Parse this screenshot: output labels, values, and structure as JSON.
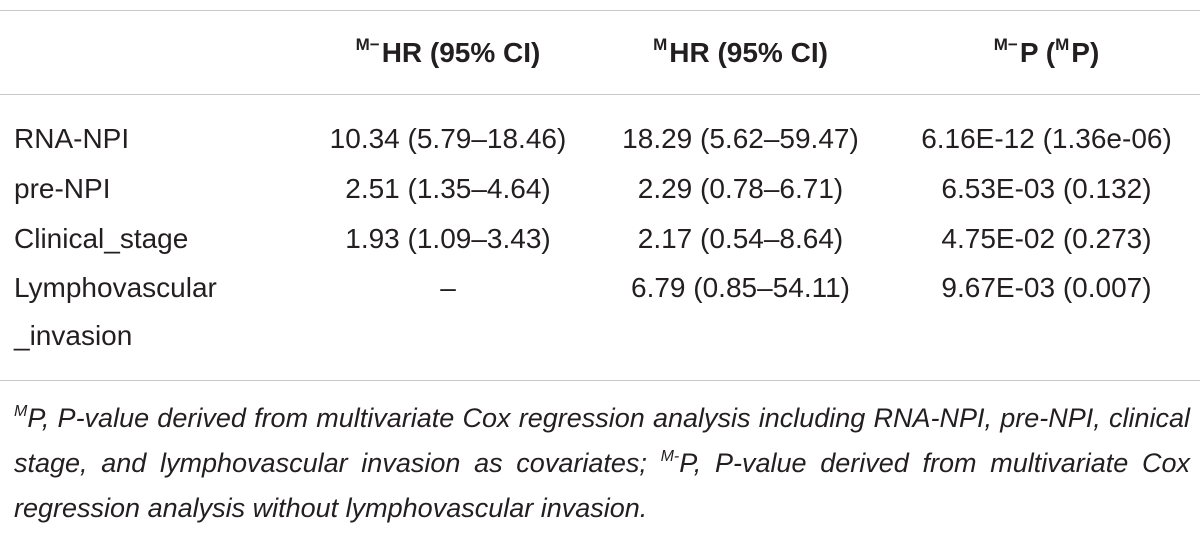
{
  "table": {
    "headers": [
      {
        "sup": "",
        "text": ""
      },
      {
        "sup": "M−",
        "text": "HR (95% CI)"
      },
      {
        "sup": "M",
        "text": "HR (95% CI)"
      },
      {
        "sup": "M−",
        "text": "P (",
        "sup2": "M",
        "text2": "P)"
      }
    ],
    "rows": [
      {
        "label": "RNA-NPI",
        "m_minus_hr": "10.34 (5.79–18.46)",
        "m_hr": "18.29 (5.62–59.47)",
        "p": "6.16E-12 (1.36e-06)"
      },
      {
        "label": "pre-NPI",
        "m_minus_hr": "2.51 (1.35–4.64)",
        "m_hr": "2.29 (0.78–6.71)",
        "p": "6.53E-03 (0.132)"
      },
      {
        "label": "Clinical_stage",
        "m_minus_hr": "1.93 (1.09–3.43)",
        "m_hr": "2.17 (0.54–8.64)",
        "p": "4.75E-02 (0.273)"
      },
      {
        "label_line1": "Lymphovascular",
        "label_line2": "_invasion",
        "m_minus_hr": "–",
        "m_hr": "6.79 (0.85–54.11)",
        "p": "9.67E-03 (0.007)"
      }
    ]
  },
  "footnote": {
    "sup1": "M",
    "part1": "P, P-value derived from multivariate Cox regression analysis including RNA-NPI, pre-NPI, clinical stage, and lymphovascular invasion as covariates; ",
    "sup2": "M-",
    "part2": "P, P-value derived from multivariate Cox regression analysis without lymphovascular invasion."
  }
}
